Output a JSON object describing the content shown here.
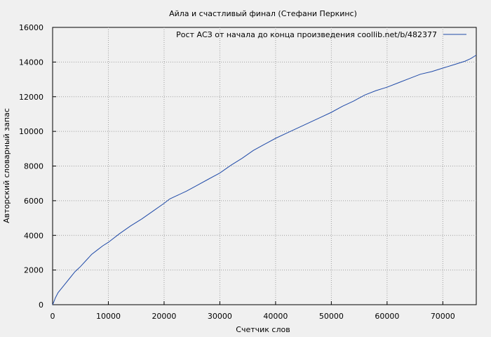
{
  "chart_data": {
    "type": "line",
    "title": "Айла и счастливый финал (Стефани Перкинс)",
    "xlabel": "Счетчик слов",
    "ylabel": "Авторский словарный запас",
    "xlim": [
      0,
      76000
    ],
    "ylim": [
      0,
      16000
    ],
    "xticks": [
      0,
      10000,
      20000,
      30000,
      40000,
      50000,
      60000,
      70000
    ],
    "yticks": [
      0,
      2000,
      4000,
      6000,
      8000,
      10000,
      12000,
      14000,
      16000
    ],
    "grid": true,
    "legend_position": "top-right",
    "line_color": "#1f4aa8",
    "series": [
      {
        "name": "Рост АСЗ от начала до конца произведения coollib.net/b/482377",
        "x": [
          0,
          200,
          500,
          1000,
          2000,
          3000,
          4000,
          5000,
          6000,
          7000,
          8000,
          9000,
          10000,
          12000,
          14000,
          16000,
          18000,
          20000,
          21000,
          22000,
          24000,
          26000,
          28000,
          30000,
          32000,
          34000,
          36000,
          38000,
          40000,
          42000,
          44000,
          46000,
          48000,
          50000,
          52000,
          54000,
          56000,
          58000,
          60000,
          62000,
          64000,
          66000,
          68000,
          70000,
          72000,
          74000,
          75000,
          76000
        ],
        "y": [
          0,
          150,
          400,
          700,
          1100,
          1500,
          1900,
          2200,
          2550,
          2900,
          3150,
          3400,
          3600,
          4100,
          4550,
          4950,
          5400,
          5850,
          6100,
          6250,
          6550,
          6900,
          7250,
          7600,
          8050,
          8450,
          8900,
          9250,
          9600,
          9900,
          10200,
          10500,
          10800,
          11100,
          11450,
          11750,
          12100,
          12350,
          12550,
          12800,
          13050,
          13300,
          13450,
          13650,
          13850,
          14050,
          14200,
          14400
        ]
      }
    ]
  }
}
